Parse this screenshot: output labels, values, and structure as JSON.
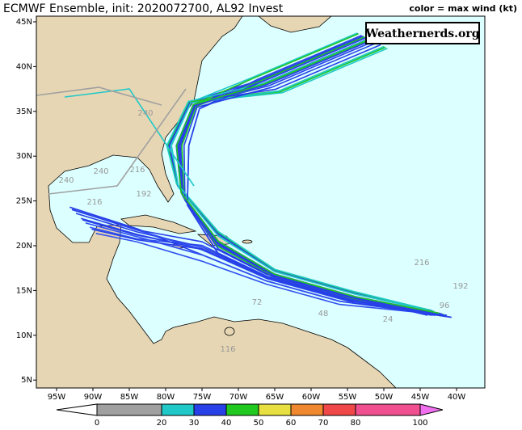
{
  "header": {
    "title": "ECMWF Ensemble, init: 2020072700, AL92 Invest",
    "legend_caption": "color = max wind (kt)",
    "logo": "Weathernerds.org"
  },
  "map": {
    "lon_labels": [
      "95W",
      "90W",
      "85W",
      "80W",
      "75W",
      "70W",
      "65W",
      "60W",
      "55W",
      "50W",
      "45W",
      "40W"
    ],
    "lat_labels": [
      "45N",
      "40N",
      "35N",
      "30N",
      "25N",
      "20N",
      "15N",
      "10N",
      "5N"
    ],
    "hour_labels": [
      "240",
      "216",
      "240",
      "240",
      "216",
      "192",
      "216",
      "192",
      "96",
      "72",
      "48",
      "24",
      "116"
    ]
  },
  "colorbar": {
    "ticks": [
      0,
      20,
      30,
      40,
      50,
      60,
      70,
      80,
      100
    ],
    "colors": [
      "#ffffff",
      "#a0a0a0",
      "#20c8c8",
      "#2840e8",
      "#20c820",
      "#e8e040",
      "#f08830",
      "#f04848",
      "#f05090",
      "#f070f0"
    ]
  }
}
